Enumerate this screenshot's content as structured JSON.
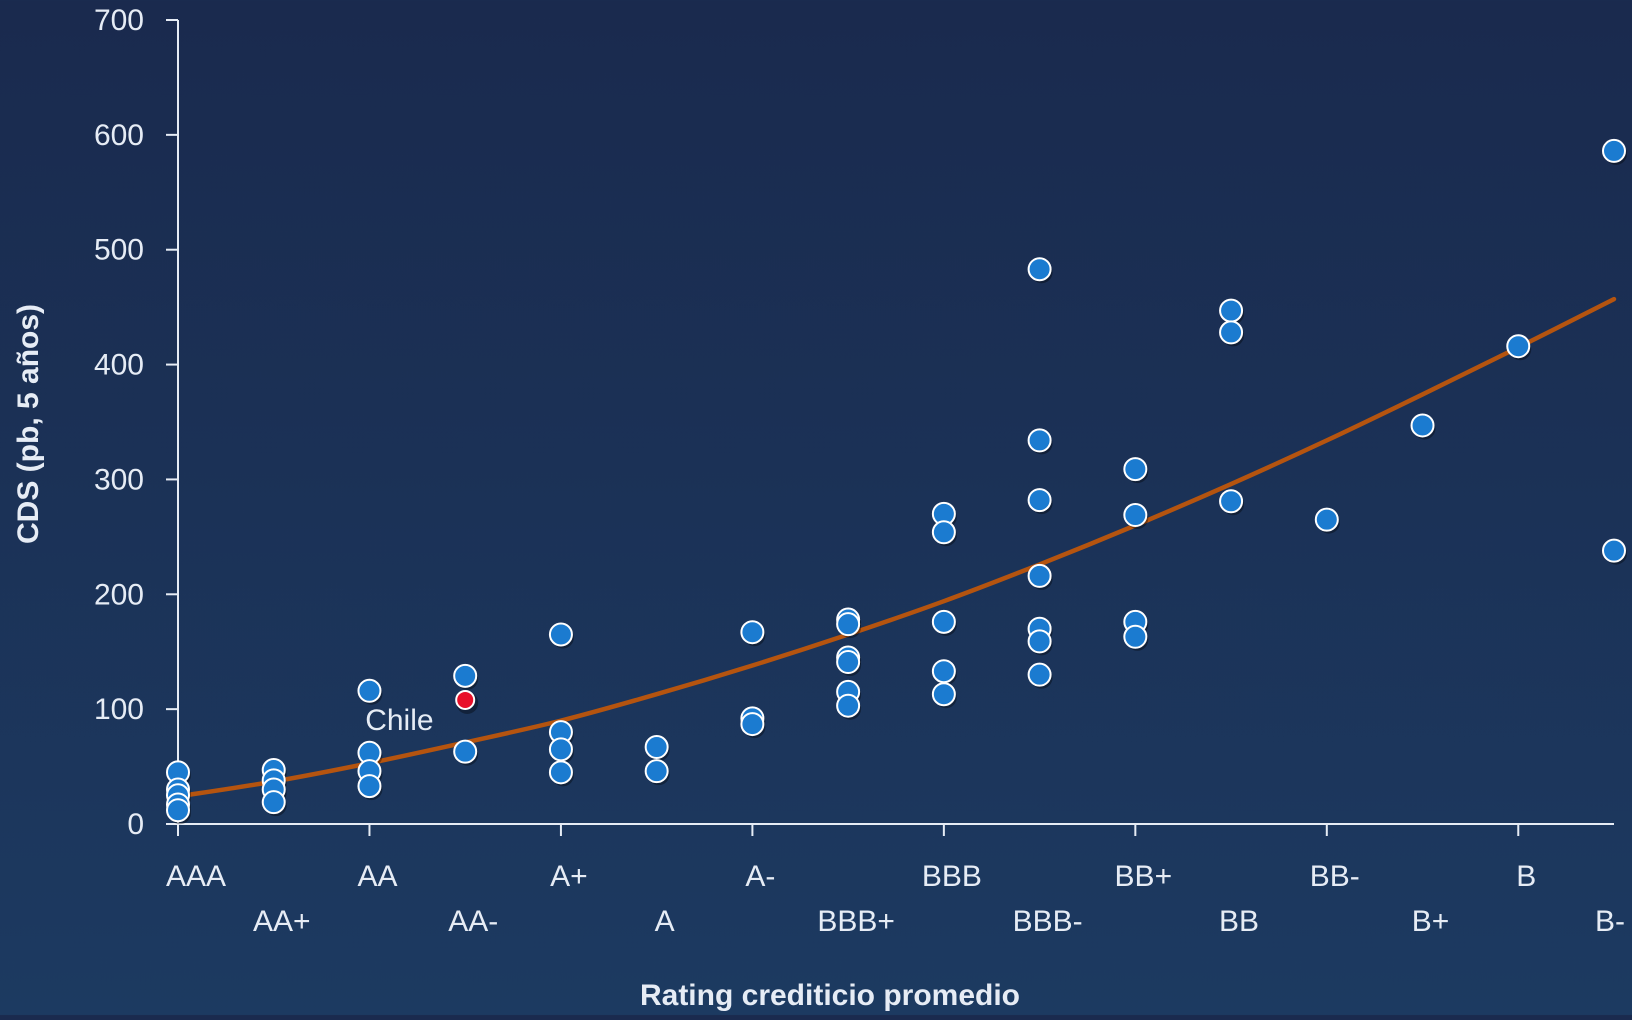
{
  "chart_data": {
    "type": "scatter",
    "title": "",
    "xlabel": "Rating crediticio promedio",
    "ylabel": "CDS (pb, 5 años)",
    "ylim": [
      0,
      700
    ],
    "yticks": [
      0,
      100,
      200,
      300,
      400,
      500,
      600,
      700
    ],
    "categories": [
      "AAA",
      "AA+",
      "AA",
      "AA-",
      "A+",
      "A",
      "A-",
      "BBB+",
      "BBB",
      "BBB-",
      "BB+",
      "BB",
      "BB-",
      "B+",
      "B",
      "B-"
    ],
    "grid": false,
    "legend": "none",
    "colors": {
      "point": "#1b7bd0",
      "point_stroke": "#ffffff",
      "highlight": "#e8102a",
      "trend": "#b5540f",
      "axis": "#e6ecf5"
    },
    "series": [
      {
        "points": [
          {
            "x": "AAA",
            "y": 45
          },
          {
            "x": "AAA",
            "y": 30
          },
          {
            "x": "AAA",
            "y": 25
          },
          {
            "x": "AAA",
            "y": 17
          },
          {
            "x": "AAA",
            "y": 12
          },
          {
            "x": "AA+",
            "y": 47
          },
          {
            "x": "AA+",
            "y": 38
          },
          {
            "x": "AA+",
            "y": 30
          },
          {
            "x": "AA+",
            "y": 19
          },
          {
            "x": "AA",
            "y": 116
          },
          {
            "x": "AA",
            "y": 62
          },
          {
            "x": "AA",
            "y": 46
          },
          {
            "x": "AA",
            "y": 33
          },
          {
            "x": "AA-",
            "y": 129
          },
          {
            "x": "AA-",
            "y": 63
          },
          {
            "x": "A+",
            "y": 165
          },
          {
            "x": "A+",
            "y": 80
          },
          {
            "x": "A+",
            "y": 65
          },
          {
            "x": "A+",
            "y": 45
          },
          {
            "x": "A",
            "y": 67
          },
          {
            "x": "A",
            "y": 46
          },
          {
            "x": "A-",
            "y": 167
          },
          {
            "x": "A-",
            "y": 92
          },
          {
            "x": "A-",
            "y": 87
          },
          {
            "x": "BBB+",
            "y": 178
          },
          {
            "x": "BBB+",
            "y": 174
          },
          {
            "x": "BBB+",
            "y": 145
          },
          {
            "x": "BBB+",
            "y": 141
          },
          {
            "x": "BBB+",
            "y": 115
          },
          {
            "x": "BBB+",
            "y": 103
          },
          {
            "x": "BBB",
            "y": 270
          },
          {
            "x": "BBB",
            "y": 254
          },
          {
            "x": "BBB",
            "y": 176
          },
          {
            "x": "BBB",
            "y": 133
          },
          {
            "x": "BBB",
            "y": 113
          },
          {
            "x": "BBB-",
            "y": 483
          },
          {
            "x": "BBB-",
            "y": 334
          },
          {
            "x": "BBB-",
            "y": 282
          },
          {
            "x": "BBB-",
            "y": 216
          },
          {
            "x": "BBB-",
            "y": 170
          },
          {
            "x": "BBB-",
            "y": 159
          },
          {
            "x": "BBB-",
            "y": 130
          },
          {
            "x": "BB+",
            "y": 309
          },
          {
            "x": "BB+",
            "y": 269
          },
          {
            "x": "BB+",
            "y": 176
          },
          {
            "x": "BB+",
            "y": 163
          },
          {
            "x": "BB",
            "y": 447
          },
          {
            "x": "BB",
            "y": 428
          },
          {
            "x": "BB",
            "y": 281
          },
          {
            "x": "BB-",
            "y": 265
          },
          {
            "x": "B+",
            "y": 347
          },
          {
            "x": "B",
            "y": 416
          },
          {
            "x": "B-",
            "y": 586
          },
          {
            "x": "B-",
            "y": 238
          }
        ]
      },
      {
        "points": [
          {
            "x": "AA-",
            "y": 108
          }
        ],
        "highlight": true
      }
    ],
    "trendline": {
      "type": "polynomial",
      "x": [
        "AAA",
        "AA+",
        "AA",
        "AA-",
        "A+",
        "A",
        "A-",
        "BBB+",
        "BBB",
        "BBB-",
        "BB+",
        "BB",
        "BB-",
        "B+",
        "B",
        "B-"
      ],
      "y": [
        24,
        37,
        53,
        71,
        90,
        113,
        138,
        165,
        194,
        226,
        260,
        296,
        334,
        374,
        415,
        457
      ]
    },
    "annotations": [
      {
        "text": "Chile",
        "x": "AA-",
        "y": 108
      }
    ]
  }
}
